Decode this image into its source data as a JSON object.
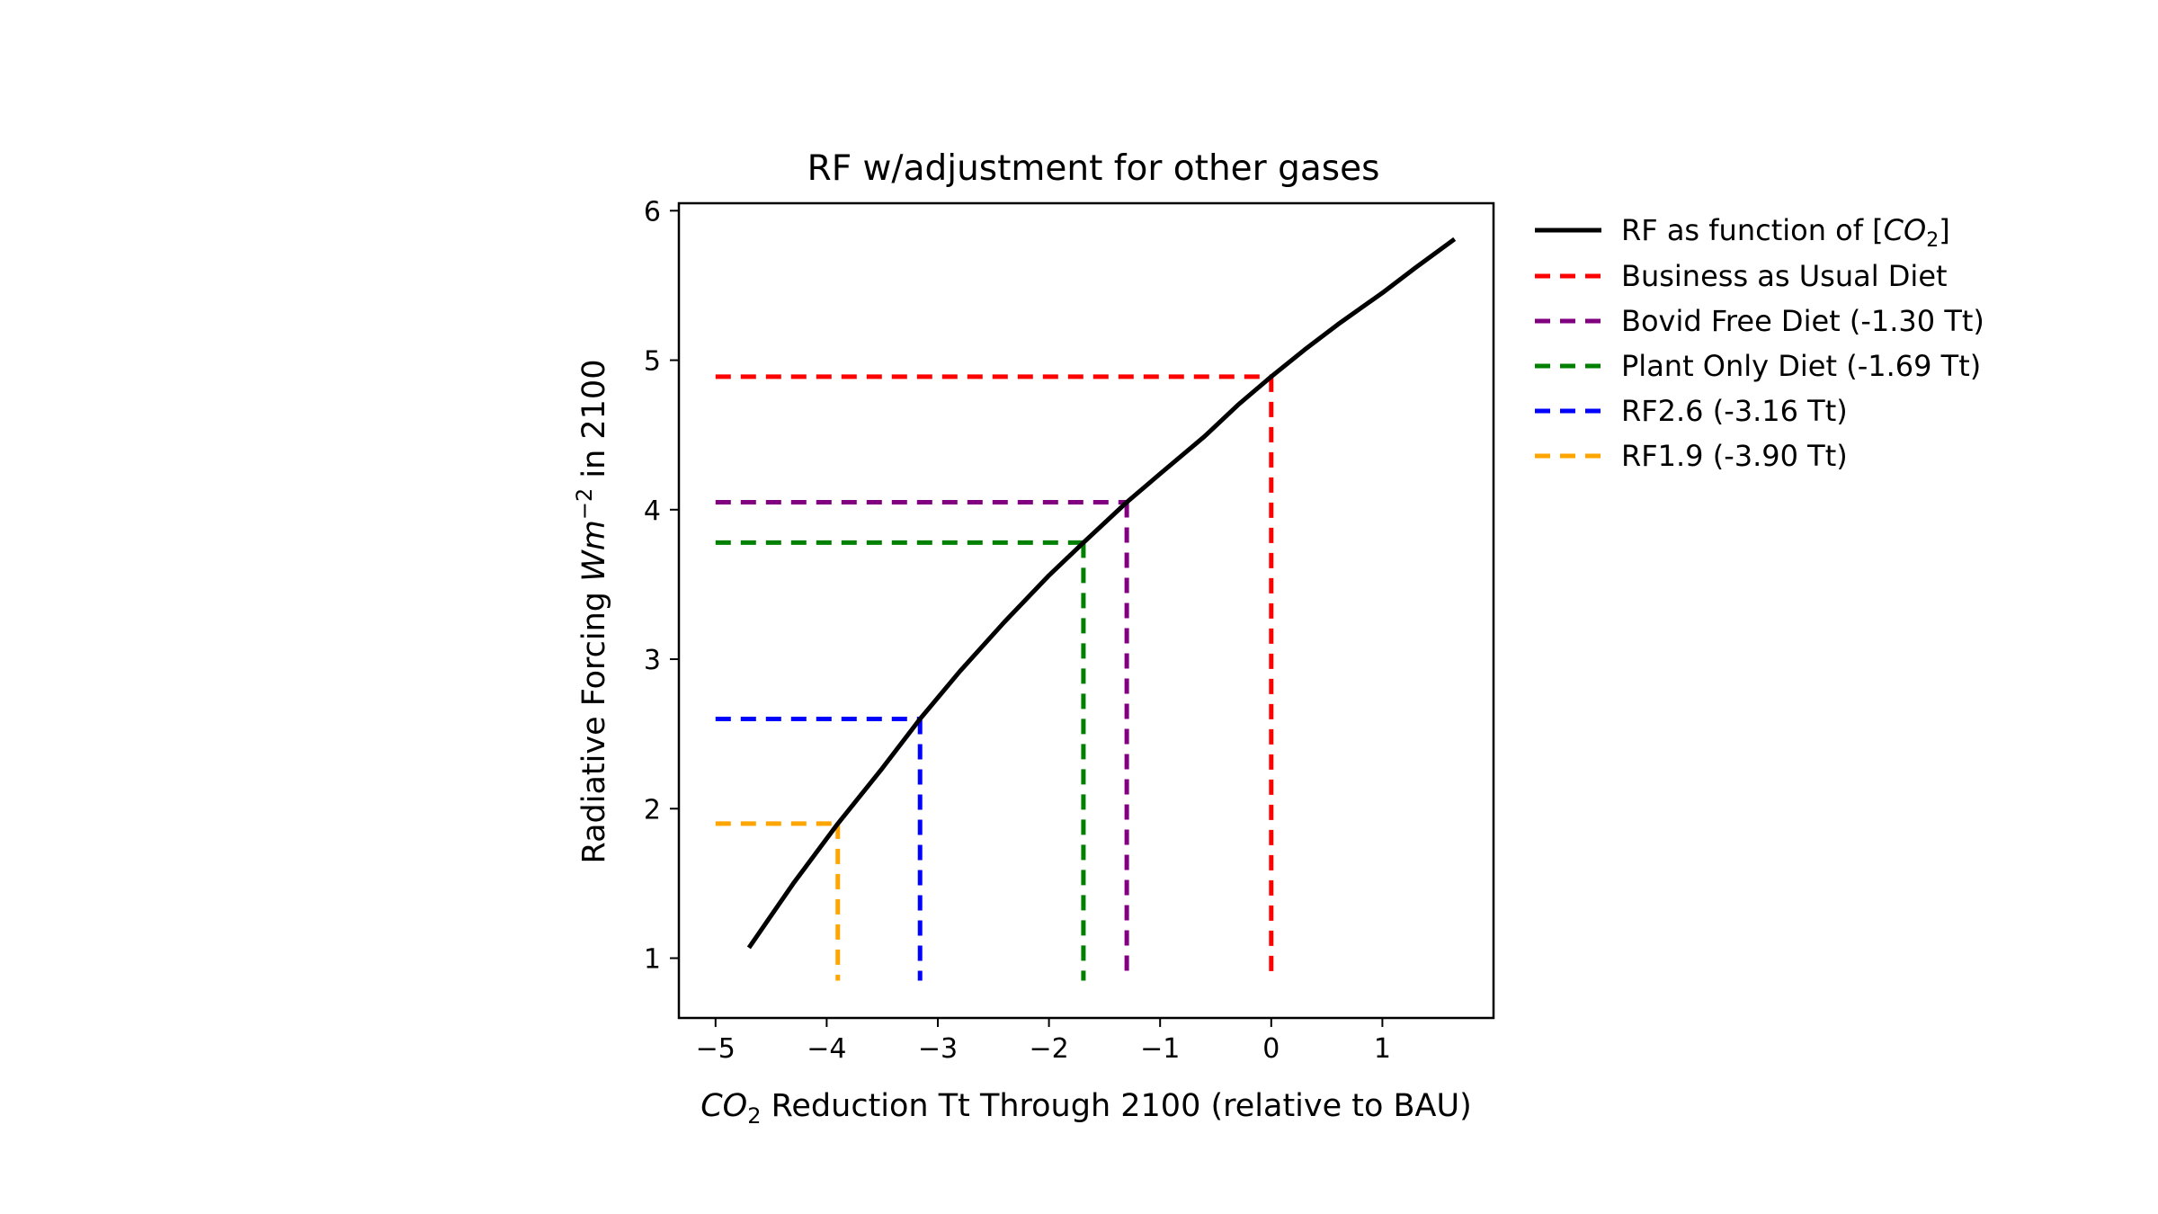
{
  "chart_data": {
    "type": "line",
    "title": "RF w/adjustment for other gases",
    "xlabel": {
      "prefix": "CO",
      "sub": "2",
      "rest": " Reduction Tt Through 2100 (relative to BAU)"
    },
    "ylabel": {
      "prefix": "Radiative Forcing ",
      "italic": "Wm",
      "sup": "−2",
      "rest": " in 2100"
    },
    "xlim": [
      -5.33,
      2.0
    ],
    "ylim": [
      0.6,
      6.05
    ],
    "xticks": [
      -5,
      -4,
      -3,
      -2,
      -1,
      0,
      1
    ],
    "xtick_labels": [
      "−5",
      "−4",
      "−3",
      "−2",
      "−1",
      "0",
      "1"
    ],
    "yticks": [
      1,
      2,
      3,
      4,
      5,
      6
    ],
    "ytick_labels": [
      "1",
      "2",
      "3",
      "4",
      "5",
      "6"
    ],
    "grid": false,
    "legend_position": "outside-right",
    "curve": {
      "name": {
        "prefix": "RF as function of [",
        "italic": "CO",
        "sub": "2",
        "suffix": "]"
      },
      "color": "#000000",
      "x": [
        -4.7,
        -4.3,
        -3.9,
        -3.5,
        -3.16,
        -2.8,
        -2.4,
        -2.0,
        -1.69,
        -1.3,
        -1.0,
        -0.6,
        -0.3,
        0.0,
        0.3,
        0.6,
        1.0,
        1.3,
        1.65
      ],
      "y": [
        1.07,
        1.5,
        1.9,
        2.27,
        2.6,
        2.92,
        3.25,
        3.56,
        3.78,
        4.05,
        4.24,
        4.49,
        4.7,
        4.89,
        5.07,
        5.24,
        5.45,
        5.62,
        5.81
      ]
    },
    "series": [
      {
        "name": "Business as Usual Diet",
        "color": "#ff0000",
        "x": 0.0,
        "y": 4.89
      },
      {
        "name": "Bovid Free Diet (-1.30 Tt)",
        "color": "#800080",
        "x": -1.3,
        "y": 4.05
      },
      {
        "name": "Plant Only Diet (-1.69 Tt)",
        "color": "#008000",
        "x": -1.69,
        "y": 3.78
      },
      {
        "name": "RF2.6 (-3.16 Tt)",
        "color": "#0000ff",
        "x": -3.16,
        "y": 2.6
      },
      {
        "name": "RF1.9 (-3.90 Tt)",
        "color": "#ffa500",
        "x": -3.9,
        "y": 1.9
      }
    ],
    "dashed_line_start_x": -5.0,
    "dashed_line_bottom_y": 0.85
  }
}
